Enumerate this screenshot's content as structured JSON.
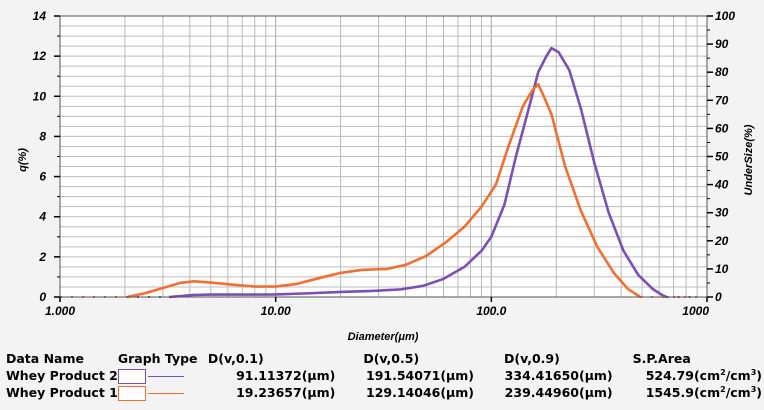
{
  "chart_data": {
    "type": "line",
    "xlabel": "Diameter(μm)",
    "ylabel_left": "q(%)",
    "ylabel_right": "UnderSize(%)",
    "x_scale": "log",
    "xlim": [
      1,
      1000
    ],
    "x_ticks": [
      "1.000",
      "10.00",
      "100.0",
      "1000"
    ],
    "ylim_left": [
      0,
      14
    ],
    "y_ticks_left": [
      "0",
      "2",
      "4",
      "6",
      "8",
      "10",
      "12",
      "14"
    ],
    "ylim_right": [
      0,
      100
    ],
    "y_ticks_right": [
      "0",
      "10",
      "20",
      "30",
      "40",
      "50",
      "60",
      "70",
      "80",
      "90",
      "100"
    ],
    "grid": true,
    "series": [
      {
        "name": "Whey Product 2",
        "color": "#7b4fb3",
        "points": [
          [
            1.0,
            0.0
          ],
          [
            1.3,
            0.0
          ],
          [
            1.7,
            0.0
          ],
          [
            2.1,
            0.0
          ],
          [
            2.6,
            0.0
          ],
          [
            3.2,
            0.0
          ],
          [
            3.6,
            0.04
          ],
          [
            4.1,
            0.1
          ],
          [
            5.0,
            0.12
          ],
          [
            6.5,
            0.12
          ],
          [
            8.0,
            0.12
          ],
          [
            10,
            0.13
          ],
          [
            14,
            0.18
          ],
          [
            20,
            0.25
          ],
          [
            28,
            0.3
          ],
          [
            38,
            0.38
          ],
          [
            48,
            0.55
          ],
          [
            60,
            0.9
          ],
          [
            75,
            1.5
          ],
          [
            90,
            2.3
          ],
          [
            100,
            3.0
          ],
          [
            115,
            4.6
          ],
          [
            130,
            7.0
          ],
          [
            150,
            9.5
          ],
          [
            165,
            11.2
          ],
          [
            180,
            12.0
          ],
          [
            190,
            12.4
          ],
          [
            205,
            12.2
          ],
          [
            230,
            11.3
          ],
          [
            260,
            9.4
          ],
          [
            300,
            6.7
          ],
          [
            350,
            4.2
          ],
          [
            410,
            2.3
          ],
          [
            480,
            1.1
          ],
          [
            560,
            0.4
          ],
          [
            630,
            0.05
          ],
          [
            650,
            0.0
          ],
          [
            700,
            0.0
          ],
          [
            800,
            0.0
          ],
          [
            900,
            0.0
          ]
        ]
      },
      {
        "name": "Whey Product 1",
        "color": "#f07030",
        "points": [
          [
            1.0,
            0.0
          ],
          [
            1.3,
            0.0
          ],
          [
            1.7,
            0.0
          ],
          [
            2.05,
            0.0
          ],
          [
            2.5,
            0.2
          ],
          [
            3.0,
            0.45
          ],
          [
            3.6,
            0.7
          ],
          [
            4.2,
            0.78
          ],
          [
            5.0,
            0.72
          ],
          [
            6.5,
            0.6
          ],
          [
            8.0,
            0.52
          ],
          [
            10,
            0.52
          ],
          [
            12.5,
            0.65
          ],
          [
            16,
            0.95
          ],
          [
            20,
            1.2
          ],
          [
            25,
            1.35
          ],
          [
            33,
            1.4
          ],
          [
            40,
            1.6
          ],
          [
            50,
            2.05
          ],
          [
            62,
            2.75
          ],
          [
            75,
            3.5
          ],
          [
            90,
            4.5
          ],
          [
            105,
            5.6
          ],
          [
            120,
            7.5
          ],
          [
            140,
            9.5
          ],
          [
            155,
            10.3
          ],
          [
            165,
            10.6
          ],
          [
            175,
            10.0
          ],
          [
            190,
            9.1
          ],
          [
            220,
            6.5
          ],
          [
            260,
            4.3
          ],
          [
            310,
            2.5
          ],
          [
            370,
            1.2
          ],
          [
            430,
            0.4
          ],
          [
            490,
            0.0
          ],
          [
            560,
            0.0
          ],
          [
            700,
            0.0
          ],
          [
            900,
            0.0
          ]
        ]
      }
    ]
  },
  "table": {
    "headers": [
      "Data Name",
      "Graph Type",
      "D(v,0.1)",
      "D(v,0.5)",
      "D(v,0.9)",
      "S.P.Area"
    ],
    "rows": [
      {
        "name": "Whey Product 2",
        "color": "#7b4fb3",
        "d10": "91.11372(μm)",
        "d50": "191.54071(μm)",
        "d90": "334.41650(μm)",
        "area_value": "524.79",
        "area_unit_a": "(cm",
        "area_exp_a": "2",
        "area_unit_b": "/cm",
        "area_exp_b": "3",
        "area_unit_c": ")"
      },
      {
        "name": "Whey Product 1",
        "color": "#f07030",
        "d10": "19.23657(μm)",
        "d50": "129.14046(μm)",
        "d90": "239.44960(μm)",
        "area_value": "1545.9",
        "area_unit_a": "(cm",
        "area_exp_a": "2",
        "area_unit_b": "/cm",
        "area_exp_b": "3",
        "area_unit_c": ")"
      }
    ]
  }
}
